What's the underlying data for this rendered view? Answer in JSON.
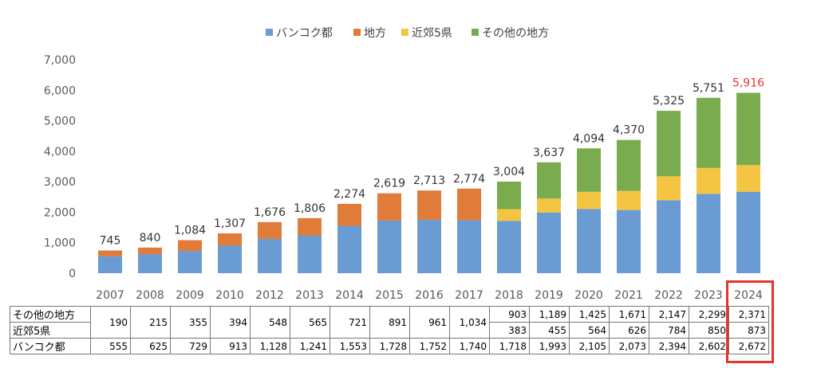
{
  "chart_data": {
    "type": "bar",
    "stacked": true,
    "title": "",
    "xlabel": "",
    "ylabel": "",
    "ylim": [
      0,
      7000
    ],
    "yticks": [
      0,
      1000,
      2000,
      3000,
      4000,
      5000,
      6000,
      7000
    ],
    "ytick_labels": [
      "0",
      "1,000",
      "2,000",
      "3,000",
      "4,000",
      "5,000",
      "6,000",
      "7,000"
    ],
    "legend_position": "top-center",
    "categories": [
      "2007",
      "2008",
      "2009",
      "2010",
      "2012",
      "2013",
      "2014",
      "2015",
      "2016",
      "2017",
      "2018",
      "2019",
      "2020",
      "2021",
      "2022",
      "2023",
      "2024"
    ],
    "series": [
      {
        "name": "バンコク都",
        "color": "#6a9bd2",
        "values": [
          555,
          625,
          729,
          913,
          1128,
          1241,
          1553,
          1728,
          1752,
          1740,
          1718,
          1993,
          2105,
          2073,
          2394,
          2602,
          2672
        ]
      },
      {
        "name": "地方",
        "color": "#e07b39",
        "values": [
          190,
          215,
          355,
          394,
          548,
          565,
          721,
          891,
          961,
          1034,
          null,
          null,
          null,
          null,
          null,
          null,
          null
        ]
      },
      {
        "name": "近郊5県",
        "color": "#f4c542",
        "values": [
          null,
          null,
          null,
          null,
          null,
          null,
          null,
          null,
          null,
          null,
          383,
          455,
          564,
          626,
          784,
          850,
          873
        ]
      },
      {
        "name": "その他の地方",
        "color": "#7aab4f",
        "values": [
          null,
          null,
          null,
          null,
          null,
          null,
          null,
          null,
          null,
          null,
          903,
          1189,
          1425,
          1671,
          2147,
          2299,
          2371
        ]
      }
    ],
    "totals": [
      745,
      840,
      1084,
      1307,
      1676,
      1806,
      2274,
      2619,
      2713,
      2774,
      3004,
      3637,
      4094,
      4370,
      5325,
      5751,
      5916
    ],
    "total_labels": [
      "745",
      "840",
      "1,084",
      "1,307",
      "1,676",
      "1,806",
      "2,274",
      "2,619",
      "2,713",
      "2,774",
      "3,004",
      "3,637",
      "4,094",
      "4,370",
      "5,325",
      "5,751",
      "5,916"
    ],
    "highlight_category": "2024",
    "highlight_color": "#e8332a"
  },
  "table": {
    "row_labels": [
      "その他の地方",
      "近郊5県",
      "バンコク都"
    ],
    "merged_regional": [
      "190",
      "215",
      "355",
      "394",
      "548",
      "565",
      "721",
      "891",
      "961",
      "1,034"
    ],
    "other_regions": [
      "903",
      "1,189",
      "1,425",
      "1,671",
      "2,147",
      "2,299",
      "2,371"
    ],
    "vicinity5": [
      "383",
      "455",
      "564",
      "626",
      "784",
      "850",
      "873"
    ],
    "bangkok": [
      "555",
      "625",
      "729",
      "913",
      "1,128",
      "1,241",
      "1,553",
      "1,728",
      "1,752",
      "1,740",
      "1,718",
      "1,993",
      "2,105",
      "2,073",
      "2,394",
      "2,602",
      "2,672"
    ]
  }
}
